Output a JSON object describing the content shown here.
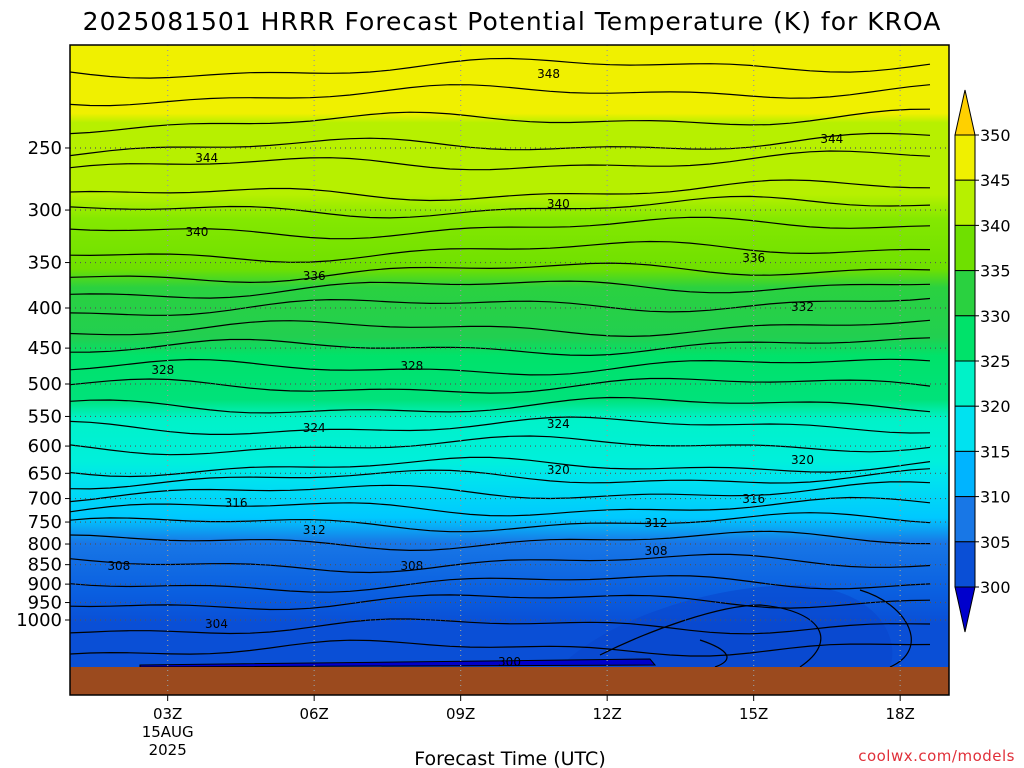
{
  "chart_data": {
    "type": "heatmap",
    "title": "2025081501 HRRR Forecast Potential Temperature (K) for KROA",
    "xlabel": "Forecast Time (UTC)",
    "ylabel": "",
    "credit": "coolwx.com/models",
    "x_ticks": [
      "03Z",
      "06Z",
      "09Z",
      "12Z",
      "15Z",
      "18Z"
    ],
    "x_tick_sub": [
      "15AUG",
      "2025"
    ],
    "x_range_hours_utc": [
      1,
      19
    ],
    "y_ticks": [
      "250",
      "300",
      "350",
      "400",
      "450",
      "500",
      "550",
      "600",
      "650",
      "700",
      "750",
      "800",
      "850",
      "900",
      "950",
      "1000"
    ],
    "y_range_hpa": [
      200,
      1000
    ],
    "colorbar": {
      "ticks": [
        "300",
        "305",
        "310",
        "315",
        "320",
        "325",
        "330",
        "335",
        "340",
        "345",
        "350"
      ],
      "colors": [
        "#0000cc",
        "#0a4fd6",
        "#1877e6",
        "#00b4ff",
        "#00e2f0",
        "#00f2c8",
        "#00e26a",
        "#2ad140",
        "#6fe000",
        "#b7f000",
        "#f0f000",
        "#ffd000"
      ]
    },
    "ground_color": "#9b4a1e",
    "contour_interval_k": 2,
    "contour_labels": [
      {
        "text": "348",
        "hour": 10.8
      },
      {
        "text": "344",
        "hour": 3.8
      },
      {
        "text": "344",
        "hour": 16.6
      },
      {
        "text": "340",
        "hour": 3.6
      },
      {
        "text": "340",
        "hour": 11.0
      },
      {
        "text": "336",
        "hour": 6.0
      },
      {
        "text": "336",
        "hour": 15.0
      },
      {
        "text": "332",
        "hour": 16.0
      },
      {
        "text": "328",
        "hour": 2.9
      },
      {
        "text": "328",
        "hour": 8.0
      },
      {
        "text": "324",
        "hour": 6.0
      },
      {
        "text": "324",
        "hour": 11.0
      },
      {
        "text": "320",
        "hour": 11.0
      },
      {
        "text": "320",
        "hour": 16.0
      },
      {
        "text": "316",
        "hour": 4.4
      },
      {
        "text": "316",
        "hour": 15.0
      },
      {
        "text": "312",
        "hour": 6.0
      },
      {
        "text": "312",
        "hour": 13.0
      },
      {
        "text": "308",
        "hour": 2.0
      },
      {
        "text": "308",
        "hour": 8.0
      },
      {
        "text": "308",
        "hour": 13.0
      },
      {
        "text": "304",
        "hour": 4.0
      },
      {
        "text": "300",
        "hour": 10.0
      }
    ]
  }
}
